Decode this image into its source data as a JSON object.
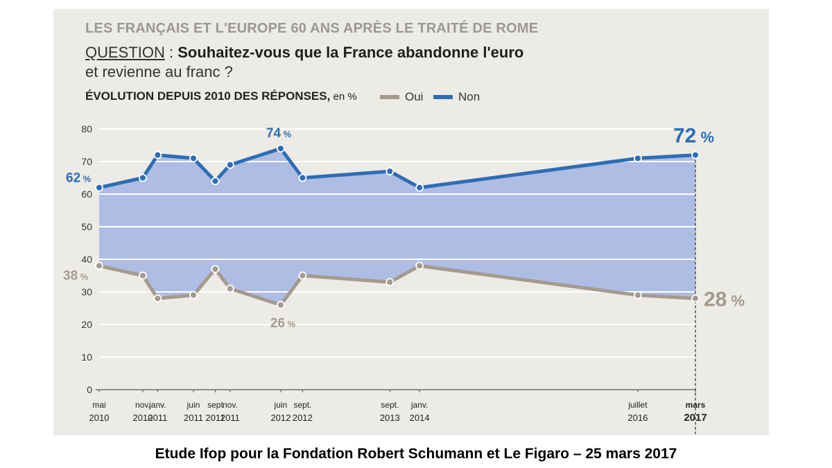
{
  "header": {
    "title": "LES FRANÇAIS ET L'EUROPE 60 ANS APRÈS LE TRAITÉ DE ROME",
    "question_label": "QUESTION",
    "question_sep": " : ",
    "question_line1": "Souhaitez-vous que la France abandonne l'euro",
    "question_line2": "et revienne au franc ?",
    "subtitle": "ÉVOLUTION DEPUIS 2010 DES RÉPONSES,",
    "subtitle_unit": " en %"
  },
  "legend": [
    {
      "name": "Oui",
      "color": "#a59a8e"
    },
    {
      "name": "Non",
      "color": "#2d6db5"
    }
  ],
  "footer": {
    "source": "Etude Ifop pour la Fondation Robert Schumann et Le Figaro – 25 mars 2017"
  },
  "chart_data": {
    "type": "line",
    "title": "LES FRANÇAIS ET L'EUROPE 60 ANS APRÈS LE TRAITÉ DE ROME",
    "ylim": [
      0,
      80
    ],
    "yticks": [
      0,
      10,
      20,
      30,
      40,
      50,
      60,
      70,
      80
    ],
    "grid": true,
    "x": [
      {
        "month": "mai",
        "year": "2010",
        "t": 2010.37
      },
      {
        "month": "nov.",
        "year": "2010",
        "t": 2010.87
      },
      {
        "month": "janv.",
        "year": "2011",
        "t": 2011.04
      },
      {
        "month": "juin",
        "year": "2011",
        "t": 2011.45
      },
      {
        "month": "sept",
        "year": "2011",
        "t": 2011.7
      },
      {
        "month": "nov.",
        "year": "2011",
        "t": 2011.87
      },
      {
        "month": "juin",
        "year": "2012",
        "t": 2012.45
      },
      {
        "month": "sept.",
        "year": "2012",
        "t": 2012.7
      },
      {
        "month": "sept.",
        "year": "2013",
        "t": 2013.7
      },
      {
        "month": "janv.",
        "year": "2014",
        "t": 2014.04
      },
      {
        "month": "juillet",
        "year": "2016",
        "t": 2016.54
      },
      {
        "month": "mars",
        "year": "2017",
        "t": 2017.2,
        "bold": true
      }
    ],
    "series": [
      {
        "name": "Non",
        "color": "#2d6db5",
        "values": [
          62,
          65,
          72,
          71,
          64,
          69,
          74,
          65,
          67,
          62,
          71,
          72
        ]
      },
      {
        "name": "Oui",
        "color": "#a59a8e",
        "values": [
          38,
          35,
          28,
          29,
          37,
          31,
          26,
          35,
          33,
          38,
          29,
          28
        ]
      }
    ],
    "fill_between_color": "#aebde4",
    "annotations": [
      {
        "series": "Non",
        "index": 0,
        "value": "62",
        "unit": " %",
        "color": "#2d6db5"
      },
      {
        "series": "Non",
        "index": 6,
        "value": "74",
        "unit": " %",
        "color": "#2d6db5"
      },
      {
        "series": "Non",
        "index": 11,
        "value": "72",
        "unit": " %",
        "color": "#2d6db5"
      },
      {
        "series": "Oui",
        "index": 0,
        "value": "38",
        "unit": " %",
        "color": "#a59a8e"
      },
      {
        "series": "Oui",
        "index": 6,
        "value": "26",
        "unit": " %",
        "color": "#a59a8e"
      },
      {
        "series": "Oui",
        "index": 11,
        "value": "28",
        "unit": " %",
        "color": "#a59a8e"
      }
    ]
  }
}
